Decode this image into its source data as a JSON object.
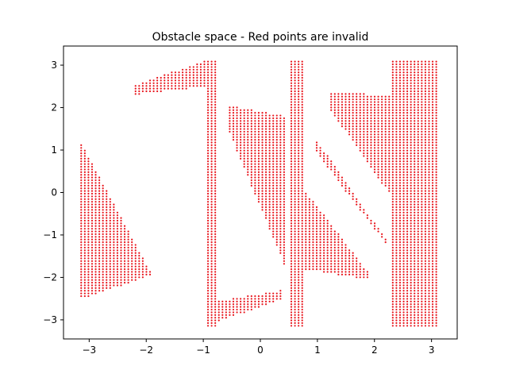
{
  "chart_data": {
    "type": "scatter",
    "title": "Obstacle space - Red points are invalid",
    "xlabel": "",
    "ylabel": "",
    "xlim": [
      -3.45,
      3.45
    ],
    "ylim": [
      -3.45,
      3.45
    ],
    "xticks": [
      -3,
      -2,
      -1,
      0,
      1,
      2,
      3
    ],
    "yticks": [
      -3,
      -2,
      -1,
      0,
      1,
      2,
      3
    ],
    "grid": false,
    "point_color": "#e8141b",
    "grid_step": 0.0635,
    "series": [
      {
        "regions": [
          {
            "shape": "triangle_left",
            "x": [
              -3.14,
              -1.9
            ],
            "y_top_at_left": 1.15,
            "y_bottom_at_left": -2.5,
            "tip_y": -1.95
          },
          {
            "shape": "band",
            "x": [
              -2.25,
              -0.9
            ],
            "y_low": [
              2.3,
              2.5
            ],
            "y_high": [
              2.5,
              3.14
            ]
          },
          {
            "shape": "rect",
            "x": [
              -0.95,
              -0.75
            ],
            "y": [
              -3.14,
              3.14
            ]
          },
          {
            "shape": "band",
            "x": [
              -0.95,
              0.4
            ],
            "y_low": [
              -3.14,
              -2.5
            ],
            "y_high": [
              -2.6,
              -2.3
            ]
          },
          {
            "shape": "diag",
            "x": [
              -0.6,
              0.45
            ],
            "top": [
              2.05,
              1.8
            ],
            "bottom": [
              1.6,
              -1.8
            ]
          },
          {
            "shape": "rect",
            "x": [
              0.5,
              0.75
            ],
            "y": [
              -3.14,
              3.14
            ]
          },
          {
            "shape": "diag",
            "x": [
              0.75,
              1.9
            ],
            "top": [
              0.1,
              -1.9
            ],
            "bottom": [
              -1.8,
              -2.05
            ]
          },
          {
            "shape": "diag",
            "x": [
              0.95,
              2.25
            ],
            "top": [
              1.3,
              -1.2
            ],
            "bottom": [
              1.0,
              -1.3
            ]
          },
          {
            "shape": "diag",
            "x": [
              1.2,
              2.3
            ],
            "top": [
              2.35,
              2.3
            ],
            "bottom": [
              2.0,
              -0.1
            ]
          },
          {
            "shape": "rect",
            "x": [
              2.3,
              3.14
            ],
            "y": [
              -3.14,
              3.14
            ]
          }
        ]
      }
    ]
  }
}
